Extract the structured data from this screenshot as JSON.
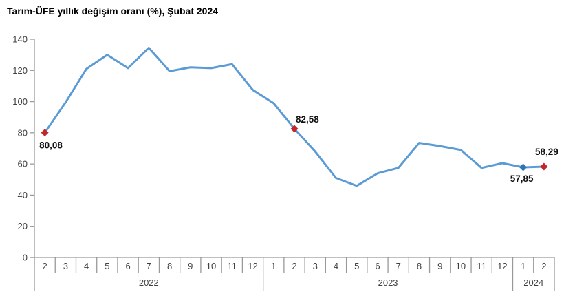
{
  "page": {
    "background": "#ffffff"
  },
  "colors": {
    "line": "#5b9bd5",
    "marker_highlight": "#c1272d",
    "marker_point": "#2e75b6",
    "axis": "#999999",
    "tick_text": "#404040",
    "label_text": "#111111"
  },
  "chart_data": {
    "type": "line",
    "title": "Tarım-ÜFE yıllık değişim oranı (%), Şubat 2024",
    "categories": [
      "2",
      "3",
      "4",
      "5",
      "6",
      "7",
      "8",
      "9",
      "10",
      "11",
      "12",
      "1",
      "2",
      "3",
      "4",
      "5",
      "6",
      "7",
      "8",
      "9",
      "10",
      "11",
      "12",
      "1",
      "2"
    ],
    "year_groups": [
      {
        "label": "2022",
        "count": 11
      },
      {
        "label": "2023",
        "count": 12
      },
      {
        "label": "2024",
        "count": 2
      }
    ],
    "values": [
      80.08,
      99.5,
      121,
      130,
      121.5,
      134.5,
      119.5,
      122,
      121.5,
      124,
      107.5,
      99,
      82.58,
      68,
      51,
      46,
      54,
      57.5,
      73.5,
      71.5,
      69,
      57.5,
      60.5,
      57.85,
      58.29
    ],
    "ylim": [
      0,
      140
    ],
    "ytick_step": 20,
    "grid": false,
    "legend": "none",
    "annotations": [
      {
        "index": 0,
        "text": "80,08",
        "position": "below-left",
        "marker": "red"
      },
      {
        "index": 12,
        "text": "82,58",
        "position": "above-right",
        "marker": "red"
      },
      {
        "index": 23,
        "text": "57,85",
        "position": "below",
        "marker": "blue"
      },
      {
        "index": 24,
        "text": "58,29",
        "position": "above",
        "marker": "red"
      }
    ]
  }
}
